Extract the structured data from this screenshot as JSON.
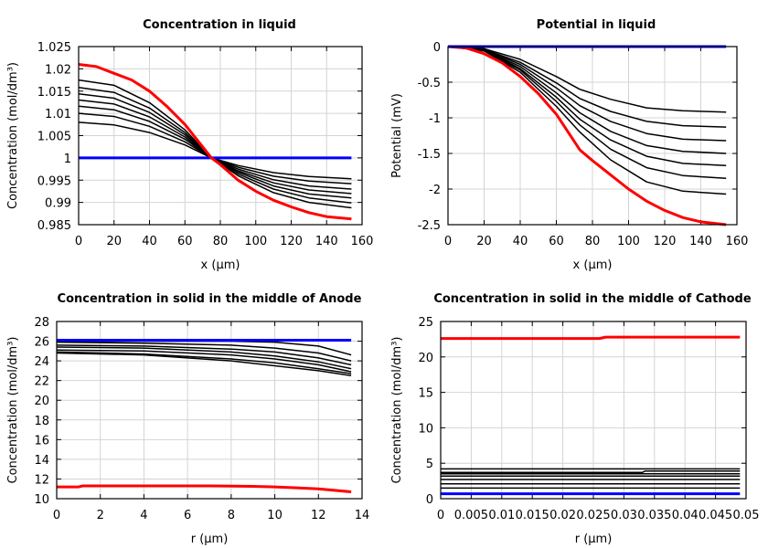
{
  "chart_data": [
    {
      "type": "line",
      "title": "Concentration in liquid",
      "xlabel": "x (µm)",
      "ylabel": "Concentration (mol/dm³)",
      "xlim": [
        0,
        160
      ],
      "ylim": [
        0.985,
        1.025
      ],
      "grid": true,
      "xticks": [
        0,
        20,
        40,
        60,
        80,
        100,
        120,
        140,
        160
      ],
      "xtick_labels": [
        "0",
        "20",
        "40",
        "60",
        "80",
        "100",
        "120",
        "140",
        "160"
      ],
      "yticks": [
        0.985,
        0.99,
        0.995,
        1,
        1.005,
        1.01,
        1.015,
        1.02,
        1.025
      ],
      "ytick_labels": [
        "0.985",
        "0.99",
        "0.995",
        "1",
        "1.005",
        "1.01",
        "1.015",
        "1.02",
        "1.025"
      ],
      "series": [
        {
          "color": "#000000",
          "x": [
            0,
            20,
            40,
            60,
            75,
            90,
            110,
            130,
            154
          ],
          "y": [
            1.0175,
            1.0163,
            1.0124,
            1.0063,
            1.0,
            0.996,
            0.9922,
            0.99,
            0.9888
          ]
        },
        {
          "color": "#000000",
          "x": [
            0,
            20,
            40,
            60,
            75,
            90,
            110,
            130,
            154
          ],
          "y": [
            1.0158,
            1.0147,
            1.0112,
            1.0057,
            1.0,
            0.9964,
            0.993,
            0.991,
            0.9899
          ]
        },
        {
          "color": "#000000",
          "x": [
            0,
            20,
            40,
            60,
            75,
            90,
            110,
            130,
            154
          ],
          "y": [
            1.0144,
            1.0134,
            1.0102,
            1.0052,
            1.0,
            0.9968,
            0.9937,
            0.9919,
            0.991
          ]
        },
        {
          "color": "#000000",
          "x": [
            0,
            20,
            40,
            60,
            75,
            90,
            110,
            130,
            154
          ],
          "y": [
            1.013,
            1.0121,
            1.0092,
            1.0047,
            1.0,
            0.9971,
            0.9944,
            0.9928,
            0.992
          ]
        },
        {
          "color": "#000000",
          "x": [
            0,
            20,
            40,
            60,
            75,
            90,
            110,
            130,
            154
          ],
          "y": [
            1.0116,
            1.0108,
            1.0082,
            1.0042,
            1.0,
            0.9975,
            0.9951,
            0.9937,
            0.993
          ]
        },
        {
          "color": "#000000",
          "x": [
            0,
            20,
            40,
            60,
            75,
            90,
            110,
            130,
            154
          ],
          "y": [
            1.01,
            1.0093,
            1.0071,
            1.0036,
            1.0,
            0.9979,
            0.9959,
            0.9948,
            0.9942
          ]
        },
        {
          "color": "#000000",
          "x": [
            0,
            20,
            40,
            60,
            75,
            90,
            110,
            130,
            154
          ],
          "y": [
            1.008,
            1.0074,
            1.0057,
            1.0029,
            1.0,
            0.9983,
            0.9967,
            0.9958,
            0.9953
          ]
        },
        {
          "color": "#0000ff",
          "x": [
            0,
            154
          ],
          "y": [
            1.0,
            1.0
          ]
        },
        {
          "color": "#ff0000",
          "x": [
            0,
            10,
            20,
            30,
            40,
            50,
            60,
            70,
            75,
            80,
            90,
            100,
            110,
            120,
            130,
            140,
            154
          ],
          "y": [
            1.021,
            1.0205,
            1.019,
            1.0175,
            1.015,
            1.0115,
            1.0075,
            1.0025,
            1.0,
            0.9985,
            0.995,
            0.9925,
            0.9905,
            0.989,
            0.9877,
            0.9868,
            0.9863
          ]
        }
      ]
    },
    {
      "type": "line",
      "title": "Potential in liquid",
      "xlabel": "x (µm)",
      "ylabel": "Potential (mV)",
      "xlim": [
        0,
        160
      ],
      "ylim": [
        -2.5,
        0
      ],
      "grid": true,
      "xticks": [
        0,
        20,
        40,
        60,
        80,
        100,
        120,
        140,
        160
      ],
      "xtick_labels": [
        "0",
        "20",
        "40",
        "60",
        "80",
        "100",
        "120",
        "140",
        "160"
      ],
      "yticks": [
        -2.5,
        -2,
        -1.5,
        -1,
        -0.5,
        0
      ],
      "ytick_labels": [
        "-2.5",
        "-2",
        "-1.5",
        "-1",
        "-0.5",
        "0"
      ],
      "series": [
        {
          "color": "#000000",
          "x": [
            0,
            20,
            40,
            60,
            73,
            90,
            110,
            130,
            154
          ],
          "y": [
            0,
            -0.03,
            -0.18,
            -0.42,
            -0.6,
            -0.74,
            -0.86,
            -0.9,
            -0.92
          ]
        },
        {
          "color": "#000000",
          "x": [
            0,
            20,
            40,
            60,
            73,
            90,
            110,
            130,
            154
          ],
          "y": [
            0,
            -0.04,
            -0.22,
            -0.51,
            -0.73,
            -0.91,
            -1.05,
            -1.11,
            -1.13
          ]
        },
        {
          "color": "#000000",
          "x": [
            0,
            20,
            40,
            60,
            73,
            90,
            110,
            130,
            154
          ],
          "y": [
            0,
            -0.04,
            -0.25,
            -0.58,
            -0.83,
            -1.05,
            -1.22,
            -1.3,
            -1.32
          ]
        },
        {
          "color": "#000000",
          "x": [
            0,
            20,
            40,
            60,
            73,
            90,
            110,
            130,
            154
          ],
          "y": [
            0,
            -0.05,
            -0.28,
            -0.65,
            -0.93,
            -1.19,
            -1.39,
            -1.47,
            -1.5
          ]
        },
        {
          "color": "#000000",
          "x": [
            0,
            20,
            40,
            60,
            73,
            90,
            110,
            130,
            154
          ],
          "y": [
            0,
            -0.05,
            -0.31,
            -0.71,
            -1.02,
            -1.31,
            -1.54,
            -1.64,
            -1.67
          ]
        },
        {
          "color": "#000000",
          "x": [
            0,
            20,
            40,
            60,
            73,
            90,
            110,
            130,
            154
          ],
          "y": [
            0,
            -0.06,
            -0.33,
            -0.77,
            -1.1,
            -1.44,
            -1.7,
            -1.81,
            -1.85
          ]
        },
        {
          "color": "#000000",
          "x": [
            0,
            20,
            40,
            60,
            73,
            90,
            110,
            130,
            154
          ],
          "y": [
            0,
            -0.06,
            -0.36,
            -0.84,
            -1.2,
            -1.59,
            -1.9,
            -2.03,
            -2.07
          ]
        },
        {
          "color": "#ff0000",
          "x": [
            0,
            10,
            20,
            30,
            40,
            50,
            60,
            73,
            80,
            90,
            100,
            110,
            120,
            130,
            140,
            154
          ],
          "y": [
            0,
            -0.02,
            -0.1,
            -0.23,
            -0.42,
            -0.66,
            -0.95,
            -1.45,
            -1.6,
            -1.8,
            -2.0,
            -2.17,
            -2.3,
            -2.4,
            -2.46,
            -2.5
          ]
        },
        {
          "color": "#0000ff",
          "x": [
            0,
            154
          ],
          "y": [
            0,
            0
          ]
        }
      ]
    },
    {
      "type": "line",
      "title": "Concentration in solid in the middle of Anode",
      "xlabel": "r (µm)",
      "ylabel": "Concentration (mol/dm³)",
      "xlim": [
        0,
        14
      ],
      "ylim": [
        10,
        28
      ],
      "grid": true,
      "xticks": [
        0,
        2,
        4,
        6,
        8,
        10,
        12,
        14
      ],
      "xtick_labels": [
        "0",
        "2",
        "4",
        "6",
        "8",
        "10",
        "12",
        "14"
      ],
      "yticks": [
        10,
        12,
        14,
        16,
        18,
        20,
        22,
        24,
        26,
        28
      ],
      "ytick_labels": [
        "10",
        "12",
        "14",
        "16",
        "18",
        "20",
        "22",
        "24",
        "26",
        "28"
      ],
      "series": [
        {
          "color": "#000000",
          "x": [
            0,
            4,
            8,
            10,
            12,
            13.5
          ],
          "y": [
            26.0,
            26.0,
            26.0,
            25.9,
            25.5,
            24.6
          ]
        },
        {
          "color": "#000000",
          "x": [
            0,
            4,
            8,
            10,
            12,
            13.5
          ],
          "y": [
            25.9,
            25.8,
            25.6,
            25.3,
            24.8,
            24.0
          ]
        },
        {
          "color": "#000000",
          "x": [
            0,
            4,
            8,
            10,
            12,
            13.5
          ],
          "y": [
            25.6,
            25.5,
            25.2,
            24.9,
            24.3,
            23.6
          ]
        },
        {
          "color": "#000000",
          "x": [
            0,
            4,
            8,
            10,
            12,
            13.5
          ],
          "y": [
            25.4,
            25.3,
            24.9,
            24.5,
            23.9,
            23.2
          ]
        },
        {
          "color": "#000000",
          "x": [
            0,
            4,
            8,
            10,
            12,
            13.5
          ],
          "y": [
            25.1,
            25.0,
            24.6,
            24.2,
            23.6,
            22.9
          ]
        },
        {
          "color": "#000000",
          "x": [
            0,
            4,
            8,
            10,
            12,
            13.5
          ],
          "y": [
            24.9,
            24.7,
            24.2,
            23.8,
            23.2,
            22.7
          ]
        },
        {
          "color": "#000000",
          "x": [
            0,
            4,
            8,
            10,
            12,
            13.5
          ],
          "y": [
            24.8,
            24.6,
            24.0,
            23.5,
            23.0,
            22.5
          ]
        },
        {
          "color": "#0000ff",
          "x": [
            0,
            13.5
          ],
          "y": [
            26.1,
            26.1
          ]
        },
        {
          "color": "#ff0000",
          "x": [
            0,
            1,
            1.2,
            4,
            7,
            9,
            10,
            11,
            12,
            13.5
          ],
          "y": [
            11.2,
            11.2,
            11.3,
            11.3,
            11.3,
            11.25,
            11.2,
            11.1,
            11.0,
            10.7
          ]
        }
      ]
    },
    {
      "type": "line",
      "title": "Concentration in solid in the middle of Cathode",
      "xlabel": "r (µm)",
      "ylabel": "Concentration (mol/dm³)",
      "xlim": [
        0,
        0.05
      ],
      "ylim": [
        0,
        25
      ],
      "grid": true,
      "xticks": [
        0,
        0.005,
        0.01,
        0.015,
        0.02,
        0.025,
        0.03,
        0.035,
        0.04,
        0.045,
        0.05
      ],
      "xtick_labels": [
        "0",
        "0.005",
        "0.01",
        "0.015",
        "0.02",
        "0.025",
        "0.03",
        "0.035",
        "0.04",
        "0.045",
        "0.05"
      ],
      "yticks": [
        0,
        5,
        10,
        15,
        20,
        25
      ],
      "ytick_labels": [
        "0",
        "5",
        "10",
        "15",
        "20",
        "25"
      ],
      "series": [
        {
          "color": "#000000",
          "x": [
            0,
            0.049
          ],
          "y": [
            4.2,
            4.2
          ]
        },
        {
          "color": "#000000",
          "x": [
            0,
            0.033,
            0.0335,
            0.049
          ],
          "y": [
            3.7,
            3.7,
            3.9,
            3.9
          ]
        },
        {
          "color": "#000000",
          "x": [
            0,
            0.049
          ],
          "y": [
            3.5,
            3.5
          ]
        },
        {
          "color": "#000000",
          "x": [
            0,
            0.049
          ],
          "y": [
            3.2,
            3.2
          ]
        },
        {
          "color": "#000000",
          "x": [
            0,
            0.049
          ],
          "y": [
            2.7,
            2.7
          ]
        },
        {
          "color": "#000000",
          "x": [
            0,
            0.049
          ],
          "y": [
            2.1,
            2.1
          ]
        },
        {
          "color": "#000000",
          "x": [
            0,
            0.049
          ],
          "y": [
            1.5,
            1.5
          ]
        },
        {
          "color": "#0000ff",
          "x": [
            0,
            0.049
          ],
          "y": [
            0.7,
            0.7
          ]
        },
        {
          "color": "#ff0000",
          "x": [
            0,
            0.026,
            0.027,
            0.049
          ],
          "y": [
            22.6,
            22.6,
            22.8,
            22.8
          ]
        }
      ]
    }
  ]
}
